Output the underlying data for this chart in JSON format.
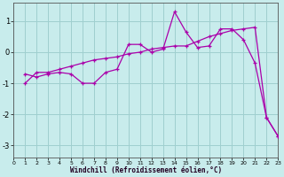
{
  "xlabel": "Windchill (Refroidissement éolien,°C)",
  "background_color": "#c8ecec",
  "grid_color": "#9fcfcf",
  "line_color": "#aa00aa",
  "xlim": [
    0,
    23
  ],
  "ylim": [
    -3.4,
    1.6
  ],
  "yticks": [
    -3,
    -2,
    -1,
    0,
    1
  ],
  "xticks": [
    0,
    1,
    2,
    3,
    4,
    5,
    6,
    7,
    8,
    9,
    10,
    11,
    12,
    13,
    14,
    15,
    16,
    17,
    18,
    19,
    20,
    21,
    22,
    23
  ],
  "line1_x": [
    1,
    2,
    3,
    4,
    5,
    6,
    7,
    8,
    9,
    10,
    11,
    12,
    13,
    14,
    15,
    16,
    17,
    18,
    19,
    20,
    21,
    22,
    23
  ],
  "line1_y": [
    -1.0,
    -0.65,
    -0.65,
    -0.55,
    -0.45,
    -0.35,
    -0.25,
    -0.2,
    -0.15,
    -0.05,
    0.0,
    0.1,
    0.15,
    0.2,
    0.2,
    0.35,
    0.5,
    0.6,
    0.7,
    0.75,
    0.8,
    -2.1,
    -2.7
  ],
  "line2_x": [
    1,
    2,
    3,
    4,
    5,
    6,
    7,
    8,
    9,
    10,
    11,
    12,
    13,
    14,
    15,
    16,
    17,
    18,
    19,
    20,
    21,
    22,
    23
  ],
  "line2_y": [
    -0.7,
    -0.8,
    -0.7,
    -0.65,
    -0.7,
    -1.0,
    -1.0,
    -0.65,
    -0.55,
    0.25,
    0.25,
    0.0,
    0.1,
    1.3,
    0.65,
    0.15,
    0.2,
    0.75,
    0.75,
    0.4,
    -0.35,
    -2.1,
    -2.7
  ]
}
